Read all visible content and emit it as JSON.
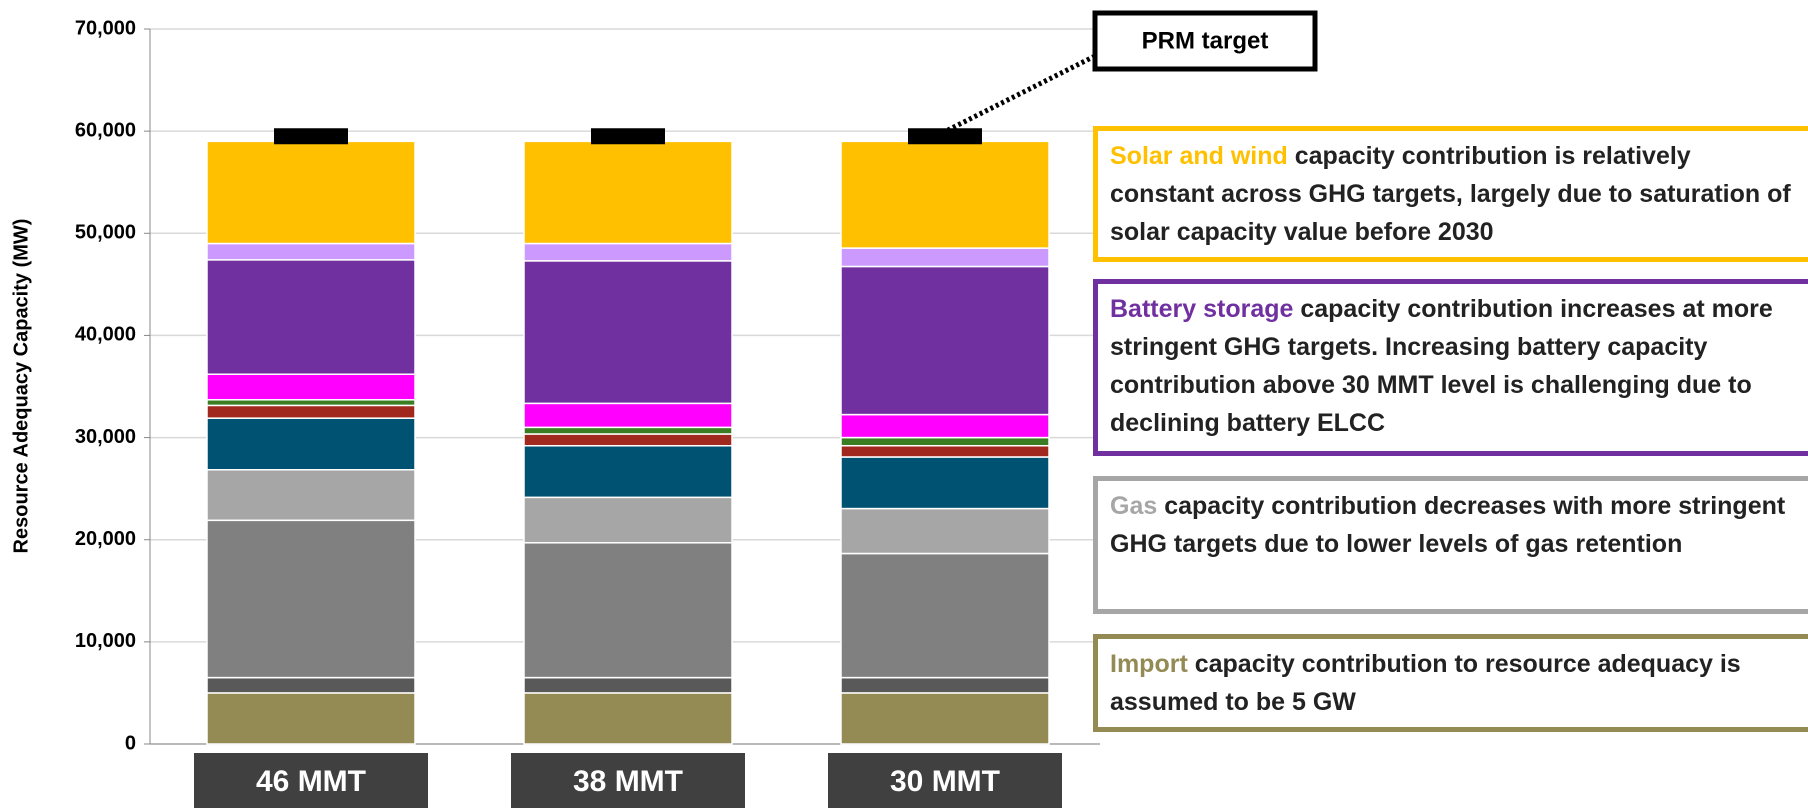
{
  "chart_data": {
    "type": "stacked_bar",
    "ylabel": "Resource Adequacy Capacity (MW)",
    "categories": [
      "46 MMT",
      "38 MMT",
      "30 MMT"
    ],
    "ylim": [
      0,
      70000
    ],
    "yticks": [
      {
        "value": 0,
        "label": "0"
      },
      {
        "value": 10000,
        "label": "10,000"
      },
      {
        "value": 20000,
        "label": "20,000"
      },
      {
        "value": 30000,
        "label": "30,000"
      },
      {
        "value": 40000,
        "label": "40,000"
      },
      {
        "value": 50000,
        "label": "50,000"
      },
      {
        "value": 60000,
        "label": "60,000"
      },
      {
        "value": 70000,
        "label": "70,000"
      }
    ],
    "series": [
      {
        "color": "#948a54",
        "values": [
          5000,
          5000,
          5000
        ]
      },
      {
        "color": "#595959",
        "values": [
          1500,
          1500,
          1500
        ]
      },
      {
        "color": "#808080",
        "values": [
          15400,
          13200,
          12150
        ]
      },
      {
        "color": "#a6a6a6",
        "values": [
          4950,
          4450,
          4400
        ]
      },
      {
        "color": "#005272",
        "values": [
          5050,
          5050,
          5050
        ]
      },
      {
        "color": "#a0281e",
        "values": [
          1250,
          1150,
          1100
        ]
      },
      {
        "color": "#3a7d22",
        "values": [
          550,
          650,
          800
        ]
      },
      {
        "color": "#ff00ff",
        "values": [
          2500,
          2350,
          2250
        ]
      },
      {
        "color": "#7030a0",
        "values": [
          11200,
          13950,
          14500
        ]
      },
      {
        "color": "#cc99ff",
        "values": [
          1600,
          1700,
          1800
        ]
      },
      {
        "color": "#ffc000",
        "values": [
          10000,
          10000,
          10450
        ]
      }
    ],
    "target": {
      "label": "PRM target",
      "color": "#000000",
      "values": [
        59500,
        59500,
        59500
      ]
    },
    "annotations": [
      {
        "highlight": "Solar and wind",
        "text": " capacity contribution is relatively constant across GHG targets, largely due to saturation of solar capacity value before 2030",
        "color": "#ffc000"
      },
      {
        "highlight": "Battery storage",
        "text": " capacity contribution increases at more stringent GHG targets. Increasing battery capacity contribution above 30 MMT level is challenging due to declining battery ELCC",
        "color": "#7030a0"
      },
      {
        "highlight": "Gas",
        "text": " capacity contribution decreases with more stringent GHG targets due to lower levels of gas retention",
        "color": "#a6a6a6"
      },
      {
        "highlight": "Import",
        "text": " capacity contribution to resource adequacy is assumed to be 5 GW",
        "color": "#948a54"
      }
    ]
  }
}
